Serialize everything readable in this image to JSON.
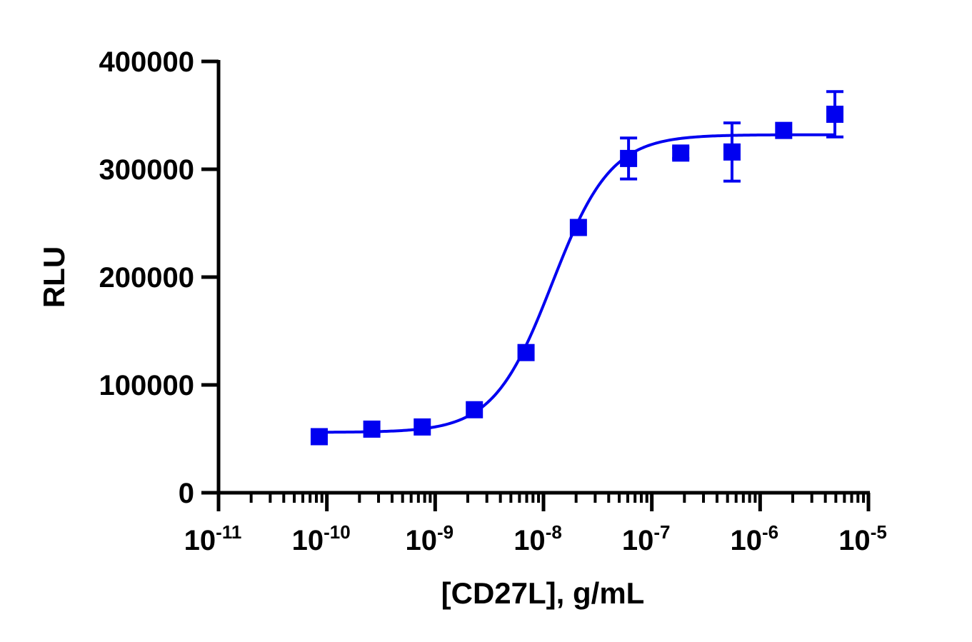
{
  "chart_data": {
    "type": "scatter",
    "title": "",
    "xlabel": "[CD27L], g/mL",
    "ylabel": "RLU",
    "x_scale": "log10",
    "xlim": [
      1e-11,
      1e-05
    ],
    "ylim": [
      0,
      400000
    ],
    "grid": false,
    "legend": "none",
    "color": "#0000f0",
    "y_ticks": [
      "0",
      "100000",
      "200000",
      "300000",
      "400000"
    ],
    "y_tick_values": [
      0,
      100000,
      200000,
      300000,
      400000
    ],
    "x_ticks": [
      {
        "value": 1e-11,
        "base": "10",
        "exp": "-11"
      },
      {
        "value": 1e-10,
        "base": "10",
        "exp": "-10"
      },
      {
        "value": 1e-09,
        "base": "10",
        "exp": "-9"
      },
      {
        "value": 1e-08,
        "base": "10",
        "exp": "-8"
      },
      {
        "value": 1e-07,
        "base": "10",
        "exp": "-7"
      },
      {
        "value": 1e-06,
        "base": "10",
        "exp": "-6"
      },
      {
        "value": 1e-05,
        "base": "10",
        "exp": "-5"
      }
    ],
    "series": [
      {
        "x": [
          8.5e-11,
          2.6e-10,
          7.6e-10,
          2.3e-09,
          6.9e-09,
          2.1e-08,
          6.1e-08,
          1.85e-07,
          5.5e-07,
          1.65e-06,
          4.9e-06
        ],
        "y": [
          52000,
          59000,
          61000,
          77000,
          130000,
          246000,
          310000,
          315000,
          316000,
          336000,
          351000
        ],
        "error": [
          0,
          0,
          0,
          0,
          0,
          0,
          19000,
          5000,
          27000,
          0,
          21000
        ]
      }
    ],
    "fit_curve": {
      "model": "4PL",
      "bottom": 56000,
      "top": 332000,
      "ec50": 1.2e-08,
      "hill": 1.6
    }
  }
}
